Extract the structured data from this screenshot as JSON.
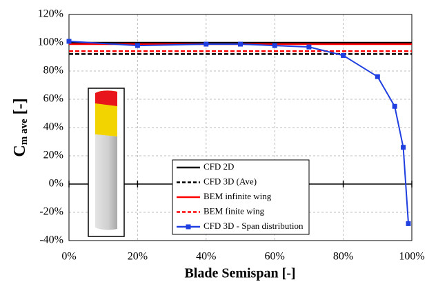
{
  "chart_data": {
    "type": "line",
    "xlabel": "Blade Semispan [-]",
    "ylabel": "C",
    "ylabel_subscript": "m ave",
    "ylabel_unit": "[-]",
    "xlim": [
      0,
      100
    ],
    "ylim": [
      -40,
      120
    ],
    "xticks": [
      {
        "value": 0,
        "label": "0%"
      },
      {
        "value": 20,
        "label": "20%"
      },
      {
        "value": 40,
        "label": "40%"
      },
      {
        "value": 60,
        "label": "60%"
      },
      {
        "value": 80,
        "label": "80%"
      },
      {
        "value": 100,
        "label": "100%"
      }
    ],
    "yticks": [
      {
        "value": -40,
        "label": "-40%"
      },
      {
        "value": -20,
        "label": "-20%"
      },
      {
        "value": 0,
        "label": "0%"
      },
      {
        "value": 20,
        "label": "20%"
      },
      {
        "value": 40,
        "label": "40%"
      },
      {
        "value": 60,
        "label": "60%"
      },
      {
        "value": 80,
        "label": "80%"
      },
      {
        "value": 100,
        "label": "100%"
      },
      {
        "value": 120,
        "label": "120%"
      }
    ],
    "grid": true,
    "legend": "lower-right",
    "series": [
      {
        "name": "CFD 2D",
        "color": "#000000",
        "dash": false,
        "x": [
          0,
          100
        ],
        "values": [
          100,
          100
        ]
      },
      {
        "name": "CFD 3D (Ave)",
        "color": "#000000",
        "dash": true,
        "x": [
          0,
          100
        ],
        "values": [
          92,
          92
        ]
      },
      {
        "name": "BEM infinite wing",
        "color": "#ff0000",
        "dash": false,
        "x": [
          0,
          100
        ],
        "values": [
          99,
          99
        ]
      },
      {
        "name": "BEM finite wing",
        "color": "#ff0000",
        "dash": true,
        "x": [
          0,
          100
        ],
        "values": [
          94,
          94
        ]
      },
      {
        "name": "CFD 3D - Span distribution",
        "color": "#1f3fe0",
        "dash": false,
        "marker": "square",
        "x": [
          0,
          20,
          40,
          50,
          60,
          70,
          80,
          90,
          95,
          97.5,
          99
        ],
        "values": [
          101,
          98,
          99,
          99,
          98,
          97,
          91,
          76,
          55,
          26,
          -28
        ]
      }
    ]
  }
}
